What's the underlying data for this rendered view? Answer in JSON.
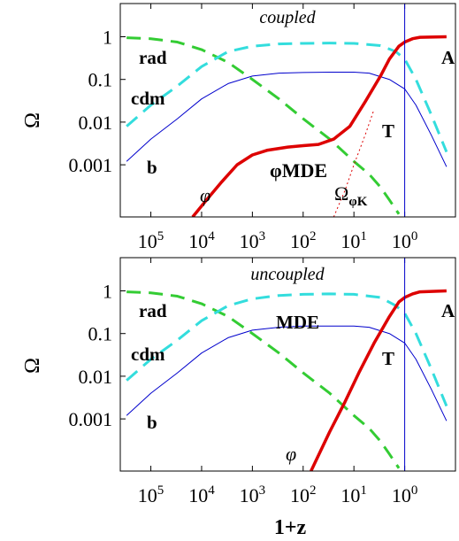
{
  "figure": {
    "y_axis_label": "Ω",
    "x_axis_label": "1+z"
  },
  "chart_data": [
    {
      "type": "line",
      "title": "coupled",
      "x_scale": "log-reversed",
      "y_scale": "log",
      "xlabel": "",
      "ylabel": "Ω",
      "x_ticks": [
        "10^5",
        "10^4",
        "10^3",
        "10^2",
        "10^1",
        "10^0"
      ],
      "x_tick_values": [
        100000,
        10000,
        1000,
        100,
        10,
        1
      ],
      "y_ticks": [
        "1",
        "0.1",
        "0.01",
        "0.001"
      ],
      "y_tick_values": [
        1,
        0.1,
        0.01,
        0.001
      ],
      "xlim": [
        400000,
        0.1
      ],
      "ylim": [
        6e-05,
        6
      ],
      "vline_at": 1,
      "annotations": [
        "rad",
        "cdm",
        "b",
        "φ",
        "φMDE",
        "Ω",
        "φK",
        "T",
        "A"
      ],
      "series": [
        {
          "name": "rad",
          "color": "#33cc33",
          "style": "dashed",
          "width": 3,
          "points": [
            [
              300000,
              0.95
            ],
            [
              100000,
              0.9
            ],
            [
              30000,
              0.75
            ],
            [
              10000,
              0.5
            ],
            [
              3000,
              0.25
            ],
            [
              1000,
              0.1
            ],
            [
              300,
              0.035
            ],
            [
              100,
              0.012
            ],
            [
              30,
              0.004
            ],
            [
              10,
              0.0012
            ],
            [
              5,
              0.0006
            ],
            [
              3,
              0.0003
            ],
            [
              2,
              0.00015
            ],
            [
              1.3,
              7e-05
            ]
          ]
        },
        {
          "name": "cdm",
          "color": "#33dddd",
          "style": "dashed",
          "width": 3,
          "points": [
            [
              300000,
              0.008
            ],
            [
              100000,
              0.025
            ],
            [
              30000,
              0.07
            ],
            [
              10000,
              0.2
            ],
            [
              3000,
              0.45
            ],
            [
              1000,
              0.6
            ],
            [
              300,
              0.68
            ],
            [
              100,
              0.7
            ],
            [
              30,
              0.71
            ],
            [
              10,
              0.7
            ],
            [
              3,
              0.62
            ],
            [
              1.5,
              0.45
            ],
            [
              1,
              0.3
            ],
            [
              0.6,
              0.1
            ],
            [
              0.3,
              0.015
            ],
            [
              0.15,
              0.002
            ]
          ]
        },
        {
          "name": "b",
          "color": "#0000cc",
          "style": "solid",
          "width": 1,
          "points": [
            [
              300000,
              0.0012
            ],
            [
              100000,
              0.004
            ],
            [
              30000,
              0.012
            ],
            [
              10000,
              0.035
            ],
            [
              3000,
              0.08
            ],
            [
              1000,
              0.12
            ],
            [
              300,
              0.14
            ],
            [
              100,
              0.145
            ],
            [
              30,
              0.148
            ],
            [
              10,
              0.148
            ],
            [
              5,
              0.14
            ],
            [
              2,
              0.1
            ],
            [
              1,
              0.06
            ],
            [
              0.6,
              0.025
            ],
            [
              0.3,
              0.005
            ],
            [
              0.15,
              0.0009
            ]
          ]
        },
        {
          "name": "φ",
          "color": "#dd0000",
          "style": "solid",
          "width": 3.5,
          "points": [
            [
              15000,
              6e-05
            ],
            [
              8000,
              0.00015
            ],
            [
              4000,
              0.0004
            ],
            [
              2000,
              0.001
            ],
            [
              1000,
              0.0017
            ],
            [
              500,
              0.0022
            ],
            [
              200,
              0.0026
            ],
            [
              100,
              0.0028
            ],
            [
              50,
              0.003
            ],
            [
              25,
              0.004
            ],
            [
              12,
              0.008
            ],
            [
              6,
              0.03
            ],
            [
              3,
              0.12
            ],
            [
              2,
              0.3
            ],
            [
              1.3,
              0.6
            ],
            [
              1,
              0.75
            ],
            [
              0.7,
              0.9
            ],
            [
              0.5,
              0.97
            ],
            [
              0.15,
              1.0
            ]
          ]
        },
        {
          "name": "ΩφK",
          "color": "#dd0000",
          "style": "dotted",
          "width": 1,
          "points": [
            [
              25,
              6e-05
            ],
            [
              15,
              0.00025
            ],
            [
              10,
              0.001
            ],
            [
              6,
              0.005
            ],
            [
              4,
              0.02
            ]
          ]
        }
      ]
    },
    {
      "type": "line",
      "title": "uncoupled",
      "x_scale": "log-reversed",
      "y_scale": "log",
      "xlabel": "1+z",
      "ylabel": "Ω",
      "x_ticks": [
        "10^5",
        "10^4",
        "10^3",
        "10^2",
        "10^1",
        "10^0"
      ],
      "x_tick_values": [
        100000,
        10000,
        1000,
        100,
        10,
        1
      ],
      "y_ticks": [
        "1",
        "0.1",
        "0.01",
        "0.001"
      ],
      "y_tick_values": [
        1,
        0.1,
        0.01,
        0.001
      ],
      "xlim": [
        400000,
        0.1
      ],
      "ylim": [
        6e-05,
        6
      ],
      "vline_at": 1,
      "annotations": [
        "rad",
        "MDE",
        "cdm",
        "b",
        "φ",
        "T",
        "A"
      ],
      "series": [
        {
          "name": "rad",
          "color": "#33cc33",
          "style": "dashed",
          "width": 3,
          "points": [
            [
              300000,
              0.95
            ],
            [
              100000,
              0.9
            ],
            [
              30000,
              0.75
            ],
            [
              10000,
              0.5
            ],
            [
              3000,
              0.25
            ],
            [
              1000,
              0.1
            ],
            [
              300,
              0.035
            ],
            [
              100,
              0.012
            ],
            [
              30,
              0.004
            ],
            [
              10,
              0.0012
            ],
            [
              5,
              0.0006
            ],
            [
              3,
              0.0003
            ],
            [
              2,
              0.00015
            ],
            [
              1.3,
              7e-05
            ]
          ]
        },
        {
          "name": "cdm",
          "color": "#33dddd",
          "style": "dashed",
          "width": 3,
          "points": [
            [
              300000,
              0.008
            ],
            [
              100000,
              0.025
            ],
            [
              30000,
              0.07
            ],
            [
              10000,
              0.2
            ],
            [
              3000,
              0.45
            ],
            [
              1000,
              0.65
            ],
            [
              300,
              0.78
            ],
            [
              100,
              0.83
            ],
            [
              30,
              0.85
            ],
            [
              10,
              0.83
            ],
            [
              3,
              0.7
            ],
            [
              1.5,
              0.45
            ],
            [
              1,
              0.3
            ],
            [
              0.6,
              0.1
            ],
            [
              0.3,
              0.015
            ],
            [
              0.15,
              0.002
            ]
          ]
        },
        {
          "name": "b",
          "color": "#0000cc",
          "style": "solid",
          "width": 1,
          "points": [
            [
              300000,
              0.0012
            ],
            [
              100000,
              0.004
            ],
            [
              30000,
              0.012
            ],
            [
              10000,
              0.035
            ],
            [
              3000,
              0.08
            ],
            [
              1000,
              0.12
            ],
            [
              300,
              0.14
            ],
            [
              100,
              0.15
            ],
            [
              30,
              0.15
            ],
            [
              10,
              0.15
            ],
            [
              5,
              0.14
            ],
            [
              2,
              0.1
            ],
            [
              1,
              0.06
            ],
            [
              0.6,
              0.025
            ],
            [
              0.3,
              0.005
            ],
            [
              0.15,
              0.0009
            ]
          ]
        },
        {
          "name": "φ",
          "color": "#dd0000",
          "style": "solid",
          "width": 3.5,
          "points": [
            [
              70,
              6e-05
            ],
            [
              30,
              0.0005
            ],
            [
              15,
              0.0025
            ],
            [
              8,
              0.012
            ],
            [
              4,
              0.06
            ],
            [
              2,
              0.25
            ],
            [
              1.3,
              0.55
            ],
            [
              1,
              0.7
            ],
            [
              0.7,
              0.85
            ],
            [
              0.5,
              0.95
            ],
            [
              0.15,
              1.0
            ]
          ]
        }
      ]
    }
  ]
}
